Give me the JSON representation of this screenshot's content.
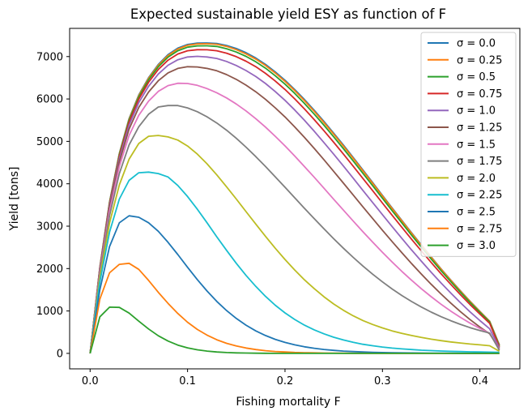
{
  "chart_data": {
    "type": "line",
    "title": "Expected sustainable yield ESY as function of F",
    "xlabel": "Fishing mortality F",
    "ylabel": "Yield [tons]",
    "xlim": [
      -0.021,
      0.441
    ],
    "ylim": [
      -365,
      7665
    ],
    "x_ticks": [
      0.0,
      0.1,
      0.2,
      0.3,
      0.4
    ],
    "x_tick_labels": [
      "0.0",
      "0.1",
      "0.2",
      "0.3",
      "0.4"
    ],
    "y_ticks": [
      0,
      1000,
      2000,
      3000,
      4000,
      5000,
      6000,
      7000
    ],
    "y_tick_labels": [
      "0",
      "1000",
      "2000",
      "3000",
      "4000",
      "5000",
      "6000",
      "7000"
    ],
    "grid": false,
    "legend_position": "top-right",
    "x": [
      0.0,
      0.01,
      0.02,
      0.03,
      0.04,
      0.05,
      0.06,
      0.07,
      0.08,
      0.09,
      0.1,
      0.11,
      0.12,
      0.13,
      0.14,
      0.15,
      0.16,
      0.17,
      0.18,
      0.19,
      0.2,
      0.21,
      0.22,
      0.23,
      0.24,
      0.25,
      0.26,
      0.27,
      0.28,
      0.29,
      0.3,
      0.31,
      0.32,
      0.33,
      0.34,
      0.35,
      0.36,
      0.37,
      0.38,
      0.39,
      0.4,
      0.41,
      0.42
    ],
    "series": [
      {
        "name": "σ = 0.0",
        "color": "#1f77b4",
        "values": [
          0,
          2030,
          3575,
          4718,
          5537,
          6095,
          6503,
          6815,
          7045,
          7198,
          7285,
          7318,
          7320,
          7310,
          7262,
          7190,
          7091,
          6966,
          6815,
          6639,
          6441,
          6222,
          5986,
          5733,
          5468,
          5193,
          4909,
          4619,
          4324,
          4026,
          3727,
          3429,
          3133,
          2841,
          2554,
          2273,
          1999,
          1733,
          1476,
          1227,
          990,
          760,
          200
        ]
      },
      {
        "name": "σ = 0.25",
        "color": "#ff7f0e",
        "values": [
          0,
          2025,
          3565,
          4705,
          5522,
          6078,
          6485,
          6795,
          7025,
          7178,
          7265,
          7298,
          7302,
          7290,
          7240,
          7165,
          7065,
          6940,
          6790,
          6614,
          6416,
          6198,
          5962,
          5710,
          5446,
          5172,
          4889,
          4600,
          4306,
          4010,
          3712,
          3415,
          3120,
          2829,
          2543,
          2263,
          1990,
          1725,
          1469,
          1221,
          985,
          756,
          192
        ]
      },
      {
        "name": "σ = 0.5",
        "color": "#2ca02c",
        "values": [
          0,
          2015,
          3548,
          4683,
          5495,
          6048,
          6452,
          6760,
          6987,
          7138,
          7222,
          7252,
          7254,
          7238,
          7185,
          7107,
          7005,
          6878,
          6726,
          6549,
          6350,
          6131,
          5895,
          5643,
          5380,
          5107,
          4826,
          4538,
          4247,
          3953,
          3658,
          3364,
          3072,
          2784,
          2501,
          2224,
          1955,
          1694,
          1442,
          1198,
          965,
          740,
          175
        ]
      },
      {
        "name": "σ = 0.75",
        "color": "#d62728",
        "values": [
          0,
          2000,
          3520,
          4645,
          5450,
          5995,
          6393,
          6695,
          6915,
          7060,
          7138,
          7163,
          7160,
          7138,
          7080,
          6998,
          6891,
          6760,
          6604,
          6425,
          6223,
          6002,
          5765,
          5513,
          5250,
          4978,
          4698,
          4413,
          4125,
          3835,
          3545,
          3256,
          2970,
          2689,
          2413,
          2144,
          1882,
          1629,
          1385,
          1150,
          925,
          710,
          150
        ]
      },
      {
        "name": "σ = 1.0",
        "color": "#9467bd",
        "values": [
          0,
          1980,
          3482,
          4592,
          5382,
          5915,
          6300,
          6588,
          6795,
          6926,
          6990,
          7005,
          6990,
          6955,
          6885,
          6790,
          6671,
          6529,
          6364,
          6176,
          5967,
          5739,
          5496,
          5239,
          4972,
          4697,
          4416,
          4131,
          3844,
          3557,
          3271,
          2988,
          2709,
          2436,
          2170,
          1912,
          1663,
          1424,
          1196,
          978,
          772,
          580,
          130
        ]
      },
      {
        "name": "σ = 1.25",
        "color": "#8c564b",
        "values": [
          0,
          1955,
          3432,
          4520,
          5288,
          5800,
          6165,
          6430,
          6615,
          6720,
          6760,
          6755,
          6720,
          6665,
          6575,
          6462,
          6326,
          6169,
          5991,
          5792,
          5575,
          5341,
          5093,
          4834,
          4566,
          4292,
          4014,
          3734,
          3455,
          3177,
          2903,
          2634,
          2371,
          2115,
          1868,
          1630,
          1403,
          1188,
          985,
          795,
          620,
          460,
          110
        ]
      },
      {
        "name": "σ = 1.5",
        "color": "#e377c2",
        "values": [
          0,
          1918,
          3357,
          4408,
          5140,
          5615,
          5950,
          6180,
          6315,
          6370,
          6365,
          6320,
          6245,
          6147,
          6025,
          5882,
          5718,
          5536,
          5336,
          5121,
          4893,
          4654,
          4406,
          4152,
          3894,
          3635,
          3376,
          3120,
          2868,
          2622,
          2383,
          2153,
          1932,
          1722,
          1523,
          1336,
          1161,
          998,
          849,
          712,
          588,
          477,
          90
        ]
      },
      {
        "name": "σ = 1.75",
        "color": "#7f7f7f",
        "values": [
          0,
          1865,
          3250,
          4240,
          4915,
          5345,
          5640,
          5810,
          5845,
          5845,
          5790,
          5700,
          5580,
          5433,
          5263,
          5072,
          4864,
          4641,
          4407,
          4165,
          3918,
          3669,
          3421,
          3176,
          2936,
          2703,
          2478,
          2263,
          2059,
          1867,
          1687,
          1519,
          1364,
          1221,
          1091,
          973,
          866,
          770,
          684,
          607,
          538,
          478,
          70
        ]
      },
      {
        "name": "σ = 2.0",
        "color": "#bcbd22",
        "values": [
          0,
          1785,
          3075,
          3975,
          4580,
          4950,
          5120,
          5140,
          5105,
          5030,
          4890,
          4700,
          4470,
          4210,
          3930,
          3640,
          3345,
          3050,
          2760,
          2480,
          2215,
          1965,
          1735,
          1525,
          1335,
          1165,
          1015,
          885,
          775,
          680,
          600,
          530,
          470,
          420,
          375,
          335,
          300,
          270,
          245,
          220,
          200,
          180,
          50
        ]
      },
      {
        "name": "σ = 2.25",
        "color": "#17becf",
        "values": [
          0,
          1680,
          2860,
          3640,
          4080,
          4260,
          4275,
          4240,
          4160,
          3960,
          3700,
          3400,
          3080,
          2750,
          2430,
          2125,
          1840,
          1580,
          1345,
          1135,
          955,
          800,
          665,
          555,
          460,
          380,
          315,
          260,
          215,
          180,
          150,
          125,
          105,
          90,
          75,
          65,
          55,
          48,
          42,
          37,
          32,
          28,
          25
        ]
      },
      {
        "name": "σ = 2.5",
        "color": "#1f77b4",
        "values": [
          0,
          1500,
          2520,
          3080,
          3245,
          3210,
          3080,
          2880,
          2620,
          2330,
          2030,
          1740,
          1470,
          1225,
          1010,
          825,
          665,
          530,
          420,
          330,
          258,
          200,
          155,
          120,
          92,
          70,
          54,
          42,
          32,
          25,
          19,
          15,
          12,
          9,
          7,
          6,
          5,
          4,
          3,
          3,
          2,
          2,
          2
        ]
      },
      {
        "name": "σ = 2.75",
        "color": "#ff7f0e",
        "values": [
          0,
          1280,
          1900,
          2100,
          2125,
          1980,
          1720,
          1440,
          1180,
          940,
          735,
          565,
          430,
          322,
          238,
          174,
          126,
          90,
          64,
          45,
          32,
          22,
          15,
          11,
          8,
          5,
          4,
          3,
          2,
          1,
          1,
          1,
          0,
          0,
          0,
          0,
          0,
          0,
          0,
          0,
          0,
          0,
          0
        ]
      },
      {
        "name": "σ = 3.0",
        "color": "#2ca02c",
        "values": [
          0,
          860,
          1090,
          1085,
          950,
          760,
          575,
          415,
          290,
          196,
          130,
          84,
          53,
          33,
          20,
          12,
          7,
          4,
          2,
          1,
          1,
          0,
          0,
          0,
          0,
          0,
          0,
          0,
          0,
          0,
          0,
          0,
          0,
          0,
          0,
          0,
          0,
          0,
          0,
          0,
          0,
          0,
          0
        ]
      }
    ]
  }
}
